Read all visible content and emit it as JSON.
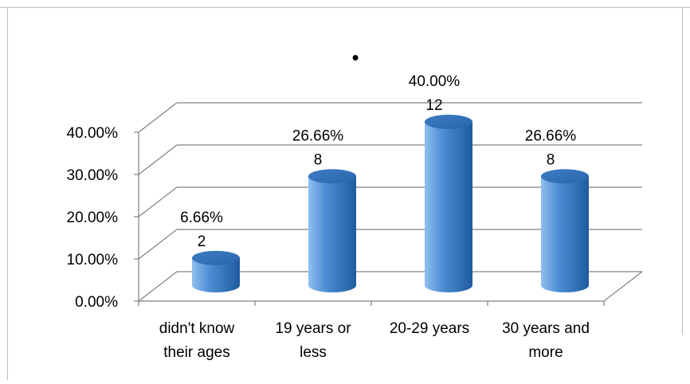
{
  "chart_data": {
    "type": "bar",
    "categories": [
      "didn't know|their ages",
      "19 years or|less",
      "20-29 years",
      "30 years and|more"
    ],
    "values": [
      0.0666,
      0.2666,
      0.4,
      0.2666
    ],
    "value_labels": [
      "6.66%",
      "26.66%",
      "40.00%",
      "26.66%"
    ],
    "count_labels": [
      "2",
      "8",
      "12",
      "8"
    ],
    "y_ticks": [
      "0.00%",
      "10.00%",
      "20.00%",
      "30.00%",
      "40.00%"
    ],
    "ylim": [
      0,
      0.4
    ],
    "title": "•",
    "grid": true,
    "style": "3d-cylinder",
    "colors": {
      "bar": "#4f8fd6",
      "bar_dark": "#1f5a9e",
      "bar_light": "#8fc0f0",
      "grid": "#808080"
    }
  }
}
